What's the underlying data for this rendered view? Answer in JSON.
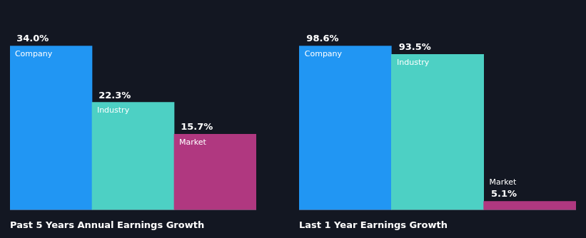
{
  "chart_data": [
    {
      "type": "bar",
      "title": "Past 5 Years Annual Earnings Growth",
      "categories": [
        "Company",
        "Industry",
        "Market"
      ],
      "values": [
        34.0,
        22.3,
        15.7
      ],
      "value_labels": [
        "34.0%",
        "22.3%",
        "15.7%"
      ],
      "colors": [
        "#2196f3",
        "#4dd0c4",
        "#b03880"
      ],
      "ylim": [
        0,
        41.48
      ],
      "grid": false,
      "tick_labels": false,
      "data_labels": true
    },
    {
      "type": "bar",
      "title": "Last 1 Year Earnings Growth",
      "categories": [
        "Company",
        "Industry",
        "Market"
      ],
      "values": [
        98.6,
        93.5,
        5.1
      ],
      "value_labels": [
        "98.6%",
        "93.5%",
        "5.1%"
      ],
      "colors": [
        "#2196f3",
        "#4dd0c4",
        "#b03880"
      ],
      "ylim": [
        0,
        120.292
      ],
      "grid": false,
      "tick_labels": false,
      "data_labels": true
    }
  ]
}
